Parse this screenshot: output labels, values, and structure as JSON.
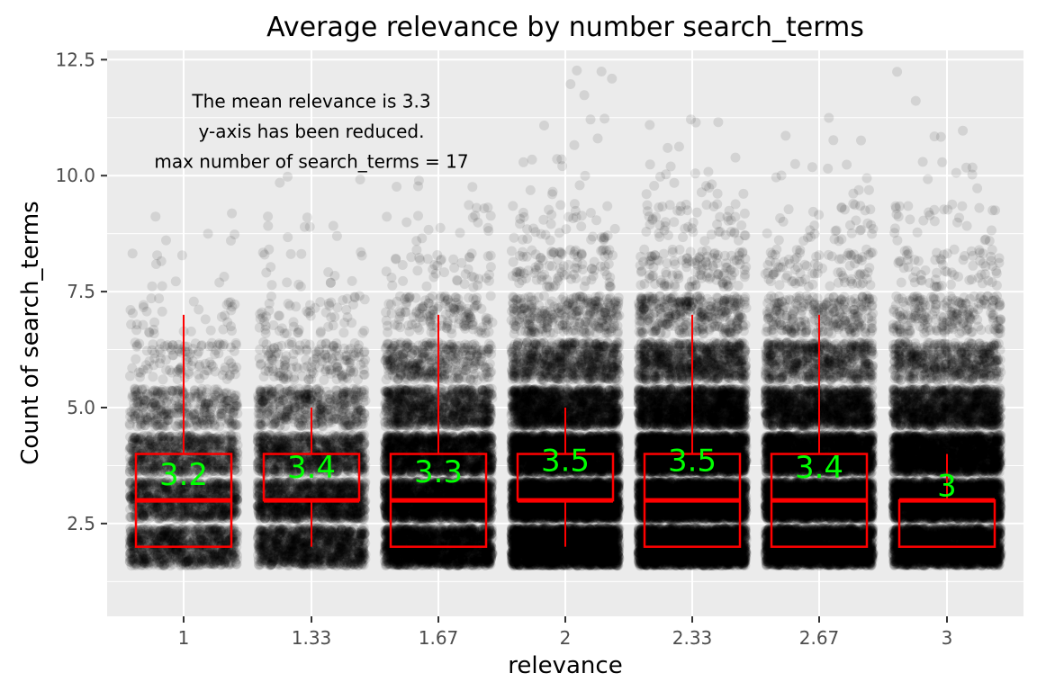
{
  "chart_data": {
    "type": "boxplot",
    "title": "Average relevance by number search_terms",
    "xlabel": "relevance",
    "ylabel": "Count of search_terms",
    "categories": [
      "1",
      "1.33",
      "1.67",
      "2",
      "2.33",
      "2.67",
      "3"
    ],
    "ylim": [
      0.5,
      12.7
    ],
    "yticks": [
      "2.5",
      "5.0",
      "7.5",
      "10.0",
      "12.5"
    ],
    "ytick_values": [
      2.5,
      5.0,
      7.5,
      10.0,
      12.5
    ],
    "grid": true,
    "background_color": "#ebebeb",
    "box_color": "#ff0000",
    "label_color": "#00ff00",
    "point_color": "#000000",
    "boxes": [
      {
        "x": "1",
        "whisker_low": 2,
        "q1": 2,
        "median": 3,
        "q3": 4,
        "whisker_high": 7,
        "mean_label": "3.2",
        "label_y": 3.55
      },
      {
        "x": "1.33",
        "whisker_low": 2,
        "q1": 3,
        "median": 3,
        "q3": 4,
        "whisker_high": 5,
        "mean_label": "3.4",
        "label_y": 3.7
      },
      {
        "x": "1.67",
        "whisker_low": 2,
        "q1": 2,
        "median": 3,
        "q3": 4,
        "whisker_high": 7,
        "mean_label": "3.3",
        "label_y": 3.6
      },
      {
        "x": "2",
        "whisker_low": 2,
        "q1": 3,
        "median": 3,
        "q3": 4,
        "whisker_high": 5,
        "mean_label": "3.5",
        "label_y": 3.85
      },
      {
        "x": "2.33",
        "whisker_low": 2,
        "q1": 2,
        "median": 3,
        "q3": 4,
        "whisker_high": 7,
        "mean_label": "3.5",
        "label_y": 3.85
      },
      {
        "x": "2.67",
        "whisker_low": 2,
        "q1": 2,
        "median": 3,
        "q3": 4,
        "whisker_high": 7,
        "mean_label": "3.4",
        "label_y": 3.7
      },
      {
        "x": "3",
        "whisker_low": 2,
        "q1": 2,
        "median": 3,
        "q3": 3,
        "whisker_high": 4,
        "mean_label": "3",
        "label_y": 3.3
      }
    ],
    "jitter_density": [
      {
        "x": "1",
        "counts": {
          "2": 900,
          "3": 900,
          "4": 700,
          "5": 350,
          "6": 110,
          "7": 35,
          "8": 10,
          "9": 6
        }
      },
      {
        "x": "1.33",
        "counts": {
          "2": 1100,
          "3": 1200,
          "4": 900,
          "5": 450,
          "6": 160,
          "7": 60,
          "8": 18,
          "9": 8,
          "10": 3
        }
      },
      {
        "x": "1.67",
        "counts": {
          "2": 2000,
          "3": 2200,
          "4": 1700,
          "5": 900,
          "6": 380,
          "7": 150,
          "8": 45,
          "9": 18,
          "10": 4
        }
      },
      {
        "x": "2",
        "counts": {
          "2": 3000,
          "3": 3200,
          "4": 2600,
          "5": 1500,
          "6": 700,
          "7": 300,
          "8": 100,
          "9": 40,
          "10": 10,
          "11": 5,
          "12": 5
        }
      },
      {
        "x": "2.33",
        "counts": {
          "2": 3200,
          "3": 3400,
          "4": 2800,
          "5": 1700,
          "6": 800,
          "7": 360,
          "8": 130,
          "9": 55,
          "10": 16,
          "11": 6
        }
      },
      {
        "x": "2.67",
        "counts": {
          "2": 2800,
          "3": 3000,
          "4": 2400,
          "5": 1400,
          "6": 650,
          "7": 270,
          "8": 90,
          "9": 35,
          "10": 10,
          "11": 4
        }
      },
      {
        "x": "3",
        "counts": {
          "2": 2600,
          "3": 2800,
          "4": 2200,
          "5": 1300,
          "6": 550,
          "7": 220,
          "8": 70,
          "9": 30,
          "10": 8,
          "11": 3,
          "12": 2
        }
      }
    ],
    "annotation": {
      "lines": [
        "The mean relevance is  3.3",
        "y-axis has been reduced.",
        "max number of  search_terms = 17"
      ],
      "x_center": "1.33",
      "y_lines": [
        11.6,
        10.95,
        10.3
      ]
    }
  }
}
